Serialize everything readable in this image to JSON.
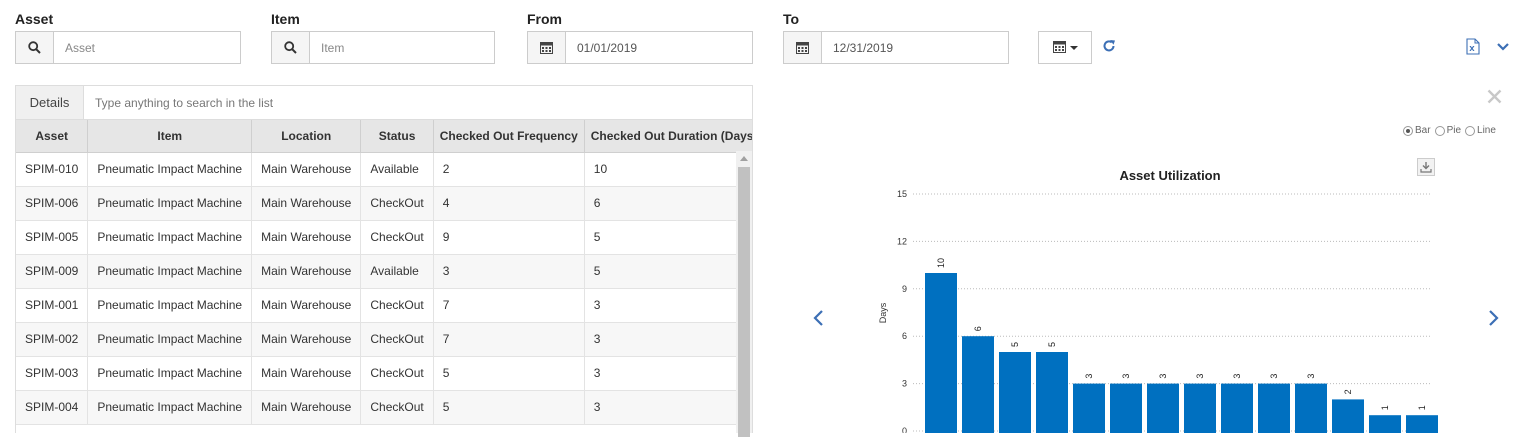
{
  "filters": {
    "asset": {
      "label": "Asset",
      "placeholder": "Asset"
    },
    "item": {
      "label": "Item",
      "placeholder": "Item"
    },
    "from": {
      "label": "From",
      "value": "01/01/2019"
    },
    "to": {
      "label": "To",
      "value": "12/31/2019"
    }
  },
  "icons": {
    "search": "search-icon",
    "calendar": "calendar-icon",
    "refresh": "refresh-icon",
    "excel": "excel-export-icon",
    "expand": "chevron-down-icon",
    "close": "close-icon",
    "download": "download-icon",
    "prev": "chevron-left-icon",
    "next": "chevron-right-icon"
  },
  "colors": {
    "accent": "#3c6fb5",
    "bar": "#0070c0"
  },
  "grid": {
    "tab_label": "Details",
    "search_placeholder": "Type anything to search in the list",
    "columns": [
      "Asset",
      "Item",
      "Location",
      "Status",
      "Checked Out Frequency",
      "Checked Out Duration (Days)"
    ],
    "rows": [
      [
        "SPIM-010",
        "Pneumatic Impact Machine",
        "Main Warehouse",
        "Available",
        "2",
        "10"
      ],
      [
        "SPIM-006",
        "Pneumatic Impact Machine",
        "Main Warehouse",
        "CheckOut",
        "4",
        "6"
      ],
      [
        "SPIM-005",
        "Pneumatic Impact Machine",
        "Main Warehouse",
        "CheckOut",
        "9",
        "5"
      ],
      [
        "SPIM-009",
        "Pneumatic Impact Machine",
        "Main Warehouse",
        "Available",
        "3",
        "5"
      ],
      [
        "SPIM-001",
        "Pneumatic Impact Machine",
        "Main Warehouse",
        "CheckOut",
        "7",
        "3"
      ],
      [
        "SPIM-002",
        "Pneumatic Impact Machine",
        "Main Warehouse",
        "CheckOut",
        "7",
        "3"
      ],
      [
        "SPIM-003",
        "Pneumatic Impact Machine",
        "Main Warehouse",
        "CheckOut",
        "5",
        "3"
      ],
      [
        "SPIM-004",
        "Pneumatic Impact Machine",
        "Main Warehouse",
        "CheckOut",
        "5",
        "3"
      ]
    ]
  },
  "chart_options": {
    "bar": "Bar",
    "pie": "Pie",
    "line": "Line",
    "selected": "bar"
  },
  "chart_data": {
    "type": "bar",
    "title": "Asset Utilization",
    "ylabel": "Days",
    "xlabel": "",
    "ylim": [
      0,
      15
    ],
    "yticks": [
      0,
      3,
      6,
      9,
      12,
      15
    ],
    "grid": true,
    "values": [
      10,
      6,
      5,
      5,
      3,
      3,
      3,
      3,
      3,
      3,
      3,
      2,
      1,
      1
    ]
  }
}
